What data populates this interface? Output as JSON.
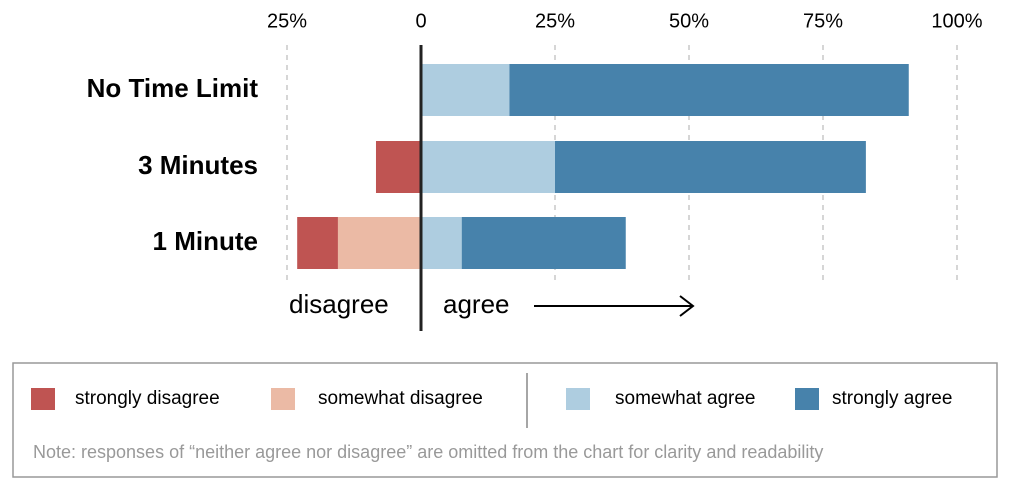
{
  "chart_data": {
    "type": "diverging-bar",
    "categories": [
      "No Time Limit",
      "3 Minutes",
      "1 Minute"
    ],
    "series": [
      {
        "name": "strongly disagree",
        "color": "#bf5452",
        "values": [
          0,
          -8.4,
          -7.6
        ]
      },
      {
        "name": "somewhat disagree",
        "color": "#ebbaa5",
        "values": [
          0,
          0,
          -15.5
        ]
      },
      {
        "name": "somewhat agree",
        "color": "#aecde0",
        "values": [
          16.5,
          25,
          7.6
        ]
      },
      {
        "name": "strongly agree",
        "color": "#4782ab",
        "values": [
          74.5,
          58,
          30.6
        ]
      }
    ],
    "xlim": [
      -25,
      100
    ],
    "xticks": [
      {
        "value": -25,
        "label": "25%"
      },
      0,
      {
        "value": 25,
        "label": "25%"
      },
      {
        "value": 50,
        "label": "50%"
      },
      {
        "value": 75,
        "label": "75%"
      },
      {
        "value": 100,
        "label": "100%"
      }
    ],
    "grid": true,
    "annotations": [
      "disagree",
      "agree"
    ],
    "note": "Note: responses of “neither agree nor disagree” are omitted from the chart for clarity and readability"
  }
}
